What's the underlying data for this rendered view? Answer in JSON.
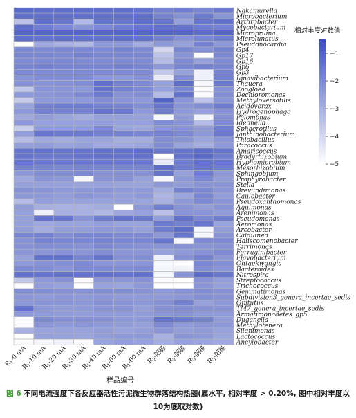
{
  "chart_data": {
    "type": "heatmap",
    "xlabel": "样品编号",
    "legend_title": "相对丰度对数值",
    "legend_ticks": [
      -1,
      -2,
      -3,
      -4,
      -5
    ],
    "value_range": [
      -5,
      -0.5
    ],
    "legend_placement": "top-right",
    "x_columns": [
      {
        "main": "R",
        "sub": "1",
        "rest": "-0 mA"
      },
      {
        "main": "R",
        "sub": "1",
        "rest": "-10 mA"
      },
      {
        "main": "R",
        "sub": "1",
        "rest": "-20 mA"
      },
      {
        "main": "R",
        "sub": "1",
        "rest": "-30 mA"
      },
      {
        "main": "R",
        "sub": "1",
        "rest": "-40 mA"
      },
      {
        "main": "R",
        "sub": "1",
        "rest": "-50 mA"
      },
      {
        "main": "R",
        "sub": "1",
        "rest": "-60 mA"
      },
      {
        "main": "R",
        "sub": "2",
        "rest": "-阳极"
      },
      {
        "main": "R",
        "sub": "2",
        "rest": "-阴极"
      },
      {
        "main": "R",
        "sub": "3",
        "rest": "-阴极"
      },
      {
        "main": "R",
        "sub": "3",
        "rest": "-阳极"
      }
    ],
    "rows": [
      "Nakamurella",
      "Microbacterium",
      "Arthrobacter",
      "Mycobacterium",
      "Micropruina",
      "Microlunatus",
      "Pseudonocardia",
      "Gp4",
      "Gp17",
      "Gp16",
      "Gp6",
      "Gp3",
      "Ignavibacterium",
      "Thauera",
      "Zoogloea",
      "Dechloromonas",
      "Methyloversatilis",
      "Acidovorax",
      "Hydrogenophaga",
      "Pelomonas",
      "Ideonella",
      "Sphaerotilus",
      "Janthinobacterium",
      "Thiobacillus",
      "Paracoccus",
      "Amaricoccus",
      "Bradyrhizobium",
      "Hyphomicrobium",
      "Mesorhizobium",
      "Sphingobium",
      "Prophyrobacter",
      "Stella",
      "Brevundimonas",
      "Caulobacter",
      "Pseudoxanthomonas",
      "Aquimonas",
      "Arenimonas",
      "Pseudomonas",
      "Aeromonas",
      "Arcobacter",
      "Caldilinea",
      "Haliscomenobacter",
      "Terrimonas",
      "Ferruginibacter",
      "Flavobacterium",
      "Ohtaekwangia",
      "Bacteroides",
      "Nitrospira",
      "Streptococcus",
      "Trichococcus",
      "Gemmatimonas",
      "Subdivision3_genera_incertae_sedis",
      "Opitutus",
      "TM7_genera_incertae_sedis",
      "Armatimonadetes_gp5",
      "Duganella",
      "Methylotenera",
      "Silanimonas",
      "Lactococcus",
      "Ancylobacter"
    ],
    "values": [
      [
        -1.2,
        -1.3,
        -1.3,
        -1.3,
        -1.3,
        -1.3,
        -1.4,
        -1.8,
        -1.7,
        -1.9,
        -1.6
      ],
      [
        -1.3,
        -1.3,
        -1.3,
        -1.3,
        -1.3,
        -1.3,
        -1.3,
        -1.8,
        -2.2,
        -1.6,
        -2.3
      ],
      [
        -3.4,
        -1.3,
        -1.5,
        -3.2,
        -1.4,
        -1.5,
        -1.3,
        -1.5,
        -2.6,
        -1.5,
        -1.4
      ],
      [
        -1.3,
        -1.7,
        -2.0,
        -2.3,
        -2.0,
        -1.7,
        -1.5,
        -1.4,
        -1.4,
        -1.7,
        -1.8
      ],
      [
        -1.1,
        -1.1,
        -1.1,
        -1.1,
        -1.1,
        -1.1,
        -1.1,
        -1.1,
        -1.1,
        -1.3,
        -1.1
      ],
      [
        -1.3,
        -1.4,
        -1.3,
        -1.4,
        -1.4,
        -1.3,
        -1.4,
        -1.8,
        -2.2,
        -1.9,
        -1.7
      ],
      [
        -4.9,
        -2.8,
        -3.0,
        -3.2,
        -2.4,
        -2.4,
        -2.9,
        -2.4,
        -2.6,
        -1.8,
        -2.4
      ],
      [
        -1.9,
        -2.0,
        -1.9,
        -1.9,
        -2.0,
        -1.8,
        -2.0,
        -4.0,
        -1.9,
        -2.2,
        -1.8
      ],
      [
        -1.9,
        -1.9,
        -2.0,
        -1.8,
        -1.9,
        -1.9,
        -1.9,
        -3.5,
        -2.3,
        -5.0,
        -2.0
      ],
      [
        -2.0,
        -2.0,
        -1.9,
        -2.0,
        -2.0,
        -2.0,
        -2.0,
        -3.3,
        -2.0,
        -2.6,
        -2.0
      ],
      [
        -1.9,
        -1.8,
        -1.9,
        -1.9,
        -1.9,
        -1.8,
        -1.9,
        -2.4,
        -1.9,
        -1.8,
        -1.9
      ],
      [
        -2.0,
        -2.0,
        -2.0,
        -2.0,
        -2.0,
        -2.0,
        -2.0,
        -3.6,
        -2.6,
        -4.6,
        -1.8
      ],
      [
        -2.3,
        -2.1,
        -2.1,
        -2.1,
        -2.4,
        -2.4,
        -2.2,
        -4.5,
        -2.1,
        -4.6,
        -1.8
      ],
      [
        -2.2,
        -2.3,
        -2.2,
        -2.1,
        -1.4,
        -1.8,
        -2.0,
        -2.6,
        -1.3,
        -4.8,
        -1.6
      ],
      [
        -3.6,
        -2.3,
        -2.3,
        -2.4,
        -1.4,
        -1.8,
        -2.0,
        -2.6,
        -1.9,
        -4.9,
        -2.2
      ],
      [
        -2.4,
        -2.3,
        -2.2,
        -2.0,
        -1.6,
        -2.2,
        -2.1,
        -3.3,
        -1.4,
        -4.9,
        -2.1
      ],
      [
        -3.7,
        -2.4,
        -2.4,
        -2.4,
        -2.1,
        -2.3,
        -2.4,
        -1.0,
        -2.3,
        -3.5,
        -2.3
      ],
      [
        -2.6,
        -1.8,
        -1.7,
        -1.7,
        -1.8,
        -1.9,
        -2.1,
        -1.5,
        -2.3,
        -2.1,
        -1.7
      ],
      [
        -2.4,
        -1.8,
        -1.8,
        -1.8,
        -1.5,
        -1.6,
        -2.4,
        -1.7,
        -2.4,
        -2.6,
        -2.2
      ],
      [
        -2.8,
        -2.5,
        -2.7,
        -2.9,
        -2.6,
        -2.6,
        -2.6,
        -4.8,
        -2.5,
        -4.7,
        -2.2
      ],
      [
        -2.4,
        -2.6,
        -2.6,
        -2.6,
        -2.5,
        -2.6,
        -2.6,
        -2.1,
        -2.3,
        -3.3,
        -2.0
      ],
      [
        -3.7,
        -2.4,
        -2.4,
        -2.4,
        -2.0,
        -2.7,
        -2.8,
        -2.3,
        -2.3,
        -2.5,
        -1.7
      ],
      [
        -2.5,
        -1.5,
        -1.6,
        -1.6,
        -1.8,
        -1.8,
        -1.9,
        -1.8,
        -2.0,
        -2.4,
        -1.6
      ],
      [
        -3.3,
        -2.8,
        -2.9,
        -2.7,
        -2.7,
        -2.9,
        -2.9,
        -2.1,
        -2.3,
        -2.7,
        -2.3
      ],
      [
        -2.6,
        -2.5,
        -2.7,
        -2.6,
        -2.8,
        -2.8,
        -2.7,
        -2.1,
        -2.7,
        -2.9,
        -2.4
      ],
      [
        -1.5,
        -1.4,
        -1.5,
        -1.5,
        -1.4,
        -1.4,
        -1.3,
        -1.6,
        -1.5,
        -1.3,
        -1.5
      ],
      [
        -1.5,
        -1.6,
        -1.6,
        -1.5,
        -1.4,
        -1.5,
        -1.4,
        -5.0,
        -1.5,
        -1.2,
        -1.7
      ],
      [
        -1.5,
        -1.6,
        -1.6,
        -1.6,
        -1.6,
        -1.6,
        -1.6,
        -4.5,
        -1.7,
        -1.4,
        -1.5
      ],
      [
        -1.8,
        -1.9,
        -2.0,
        -1.9,
        -1.9,
        -1.9,
        -1.9,
        -1.3,
        -1.7,
        -1.5,
        -1.7
      ],
      [
        -2.4,
        -2.1,
        -2.1,
        -2.0,
        -2.2,
        -2.2,
        -2.2,
        -1.5,
        -2.6,
        -1.7,
        -2.4
      ],
      [
        -2.8,
        -2.3,
        -2.4,
        -4.8,
        -2.3,
        -2.2,
        -2.6,
        -4.8,
        -2.4,
        -1.9,
        -2.5
      ],
      [
        -2.6,
        -2.6,
        -2.6,
        -2.7,
        -2.6,
        -2.7,
        -2.7,
        -2.4,
        -2.5,
        -2.3,
        -2.3
      ],
      [
        -2.2,
        -2.3,
        -2.4,
        -2.4,
        -2.3,
        -2.4,
        -2.4,
        -2.9,
        -1.8,
        -2.0,
        -2.3
      ],
      [
        -2.4,
        -2.4,
        -2.5,
        -2.3,
        -2.4,
        -2.5,
        -2.4,
        -3.1,
        -2.7,
        -1.9,
        -2.5
      ],
      [
        -3.3,
        -2.5,
        -2.6,
        -2.6,
        -2.6,
        -2.6,
        -2.7,
        -3.0,
        -2.4,
        -2.0,
        -2.3
      ],
      [
        -2.5,
        -3.0,
        -3.0,
        -3.0,
        -2.9,
        -5.0,
        -2.4,
        -1.7,
        -2.3,
        -2.5,
        -2.3
      ],
      [
        -2.6,
        -4.6,
        -3.0,
        -3.0,
        -3.2,
        -2.8,
        -2.6,
        -3.4,
        -2.3,
        -2.3,
        -2.5
      ],
      [
        -2.6,
        -1.4,
        -1.5,
        -2.3,
        -1.7,
        -1.4,
        -1.6,
        -2.5,
        -1.4,
        -2.0,
        -1.7
      ],
      [
        -2.6,
        -2.8,
        -2.7,
        -2.7,
        -2.5,
        -2.7,
        -2.7,
        -1.6,
        -1.8,
        -1.5,
        -2.7
      ],
      [
        -2.5,
        -2.9,
        -2.5,
        -2.5,
        -2.4,
        -2.4,
        -2.6,
        -1.7,
        -1.3,
        -4.7,
        -2.5
      ],
      [
        -1.9,
        -1.8,
        -2.1,
        -1.9,
        -1.9,
        -2.0,
        -2.0,
        -2.4,
        -1.5,
        -4.8,
        -2.3
      ],
      [
        -2.2,
        -1.8,
        -1.9,
        -1.9,
        -1.8,
        -1.9,
        -1.9,
        -1.5,
        -4.8,
        -2.0,
        -2.0
      ],
      [
        -2.2,
        -2.1,
        -2.1,
        -2.2,
        -2.0,
        -2.1,
        -2.2,
        -2.3,
        -2.2,
        -2.3,
        -2.2
      ],
      [
        -2.3,
        -2.3,
        -2.2,
        -2.3,
        -2.1,
        -2.3,
        -2.3,
        -2.6,
        -2.4,
        -2.2,
        -2.0
      ],
      [
        -2.6,
        -1.4,
        -1.4,
        -1.9,
        -1.5,
        -2.2,
        -2.1,
        -4.6,
        -2.2,
        -1.8,
        -2.4
      ],
      [
        -2.4,
        -2.2,
        -2.1,
        -2.0,
        -2.3,
        -2.3,
        -2.3,
        -4.8,
        -4.9,
        -1.9,
        -2.1
      ],
      [
        -2.0,
        -2.1,
        -2.3,
        -2.0,
        -2.0,
        -2.1,
        -2.0,
        -4.8,
        -4.7,
        -2.1,
        -2.3
      ],
      [
        -1.4,
        -1.5,
        -1.4,
        -1.5,
        -1.4,
        -1.5,
        -1.4,
        -4.8,
        -2.3,
        -1.3,
        -1.6
      ],
      [
        -3.6,
        -2.4,
        -2.2,
        -4.9,
        -2.3,
        -2.3,
        -2.2,
        -4.9,
        -5.0,
        -2.2,
        -2.5
      ],
      [
        -4.9,
        -2.5,
        -2.6,
        -5.0,
        -2.6,
        -2.7,
        -2.4,
        -5.0,
        -5.0,
        -2.3,
        -2.6
      ],
      [
        -2.1,
        -2.1,
        -2.2,
        -2.2,
        -2.1,
        -2.1,
        -2.2,
        -2.4,
        -2.2,
        -2.1,
        -2.2
      ],
      [
        -2.3,
        -2.4,
        -2.3,
        -2.4,
        -2.3,
        -2.4,
        -2.4,
        -2.4,
        -2.3,
        -2.1,
        -2.2
      ],
      [
        -2.4,
        -2.3,
        -2.3,
        -2.4,
        -2.2,
        -2.3,
        -2.4,
        -2.2,
        -1.8,
        -2.6,
        -2.4
      ],
      [
        -1.4,
        -2.4,
        -2.5,
        -2.4,
        -2.3,
        -2.3,
        -2.5,
        -2.2,
        -2.1,
        -2.2,
        -2.3
      ],
      [
        -2.4,
        -2.4,
        -2.5,
        -2.5,
        -2.4,
        -2.4,
        -2.5,
        -2.3,
        -2.2,
        -2.4,
        -2.4
      ],
      [
        -4.9,
        -2.0,
        -2.2,
        -2.2,
        -2.2,
        -2.4,
        -2.4,
        -1.4,
        -1.6,
        -1.8,
        -2.5
      ],
      [
        -4.9,
        -2.3,
        -2.4,
        -2.3,
        -2.4,
        -2.5,
        -2.6,
        -2.0,
        -2.4,
        -2.3,
        -2.4
      ],
      [
        -3.0,
        -2.7,
        -2.6,
        -2.6,
        -2.5,
        -2.6,
        -2.5,
        -2.3,
        -2.5,
        -2.4,
        -2.6
      ],
      [
        -5.0,
        -2.6,
        -2.6,
        -2.7,
        -2.5,
        -2.4,
        -2.4,
        -3.0,
        -2.3,
        -2.4,
        -2.7
      ],
      [
        -4.9,
        -4.8,
        -4.7,
        -4.9,
        -2.7,
        -2.5,
        -2.6,
        -2.9,
        -2.6,
        -2.7,
        -2.8
      ]
    ],
    "colors": {
      "low": "#ffffff",
      "high": "#3c4fbd",
      "cell_border": "#b3b3b3"
    }
  },
  "caption": {
    "figure_no": "图 6",
    "text": " 不同电流强度下各反应器活性污泥微生物群落结构热图(属水平, 相对丰度 > 0.20%, 图中相对丰度以10为底取对数)"
  }
}
